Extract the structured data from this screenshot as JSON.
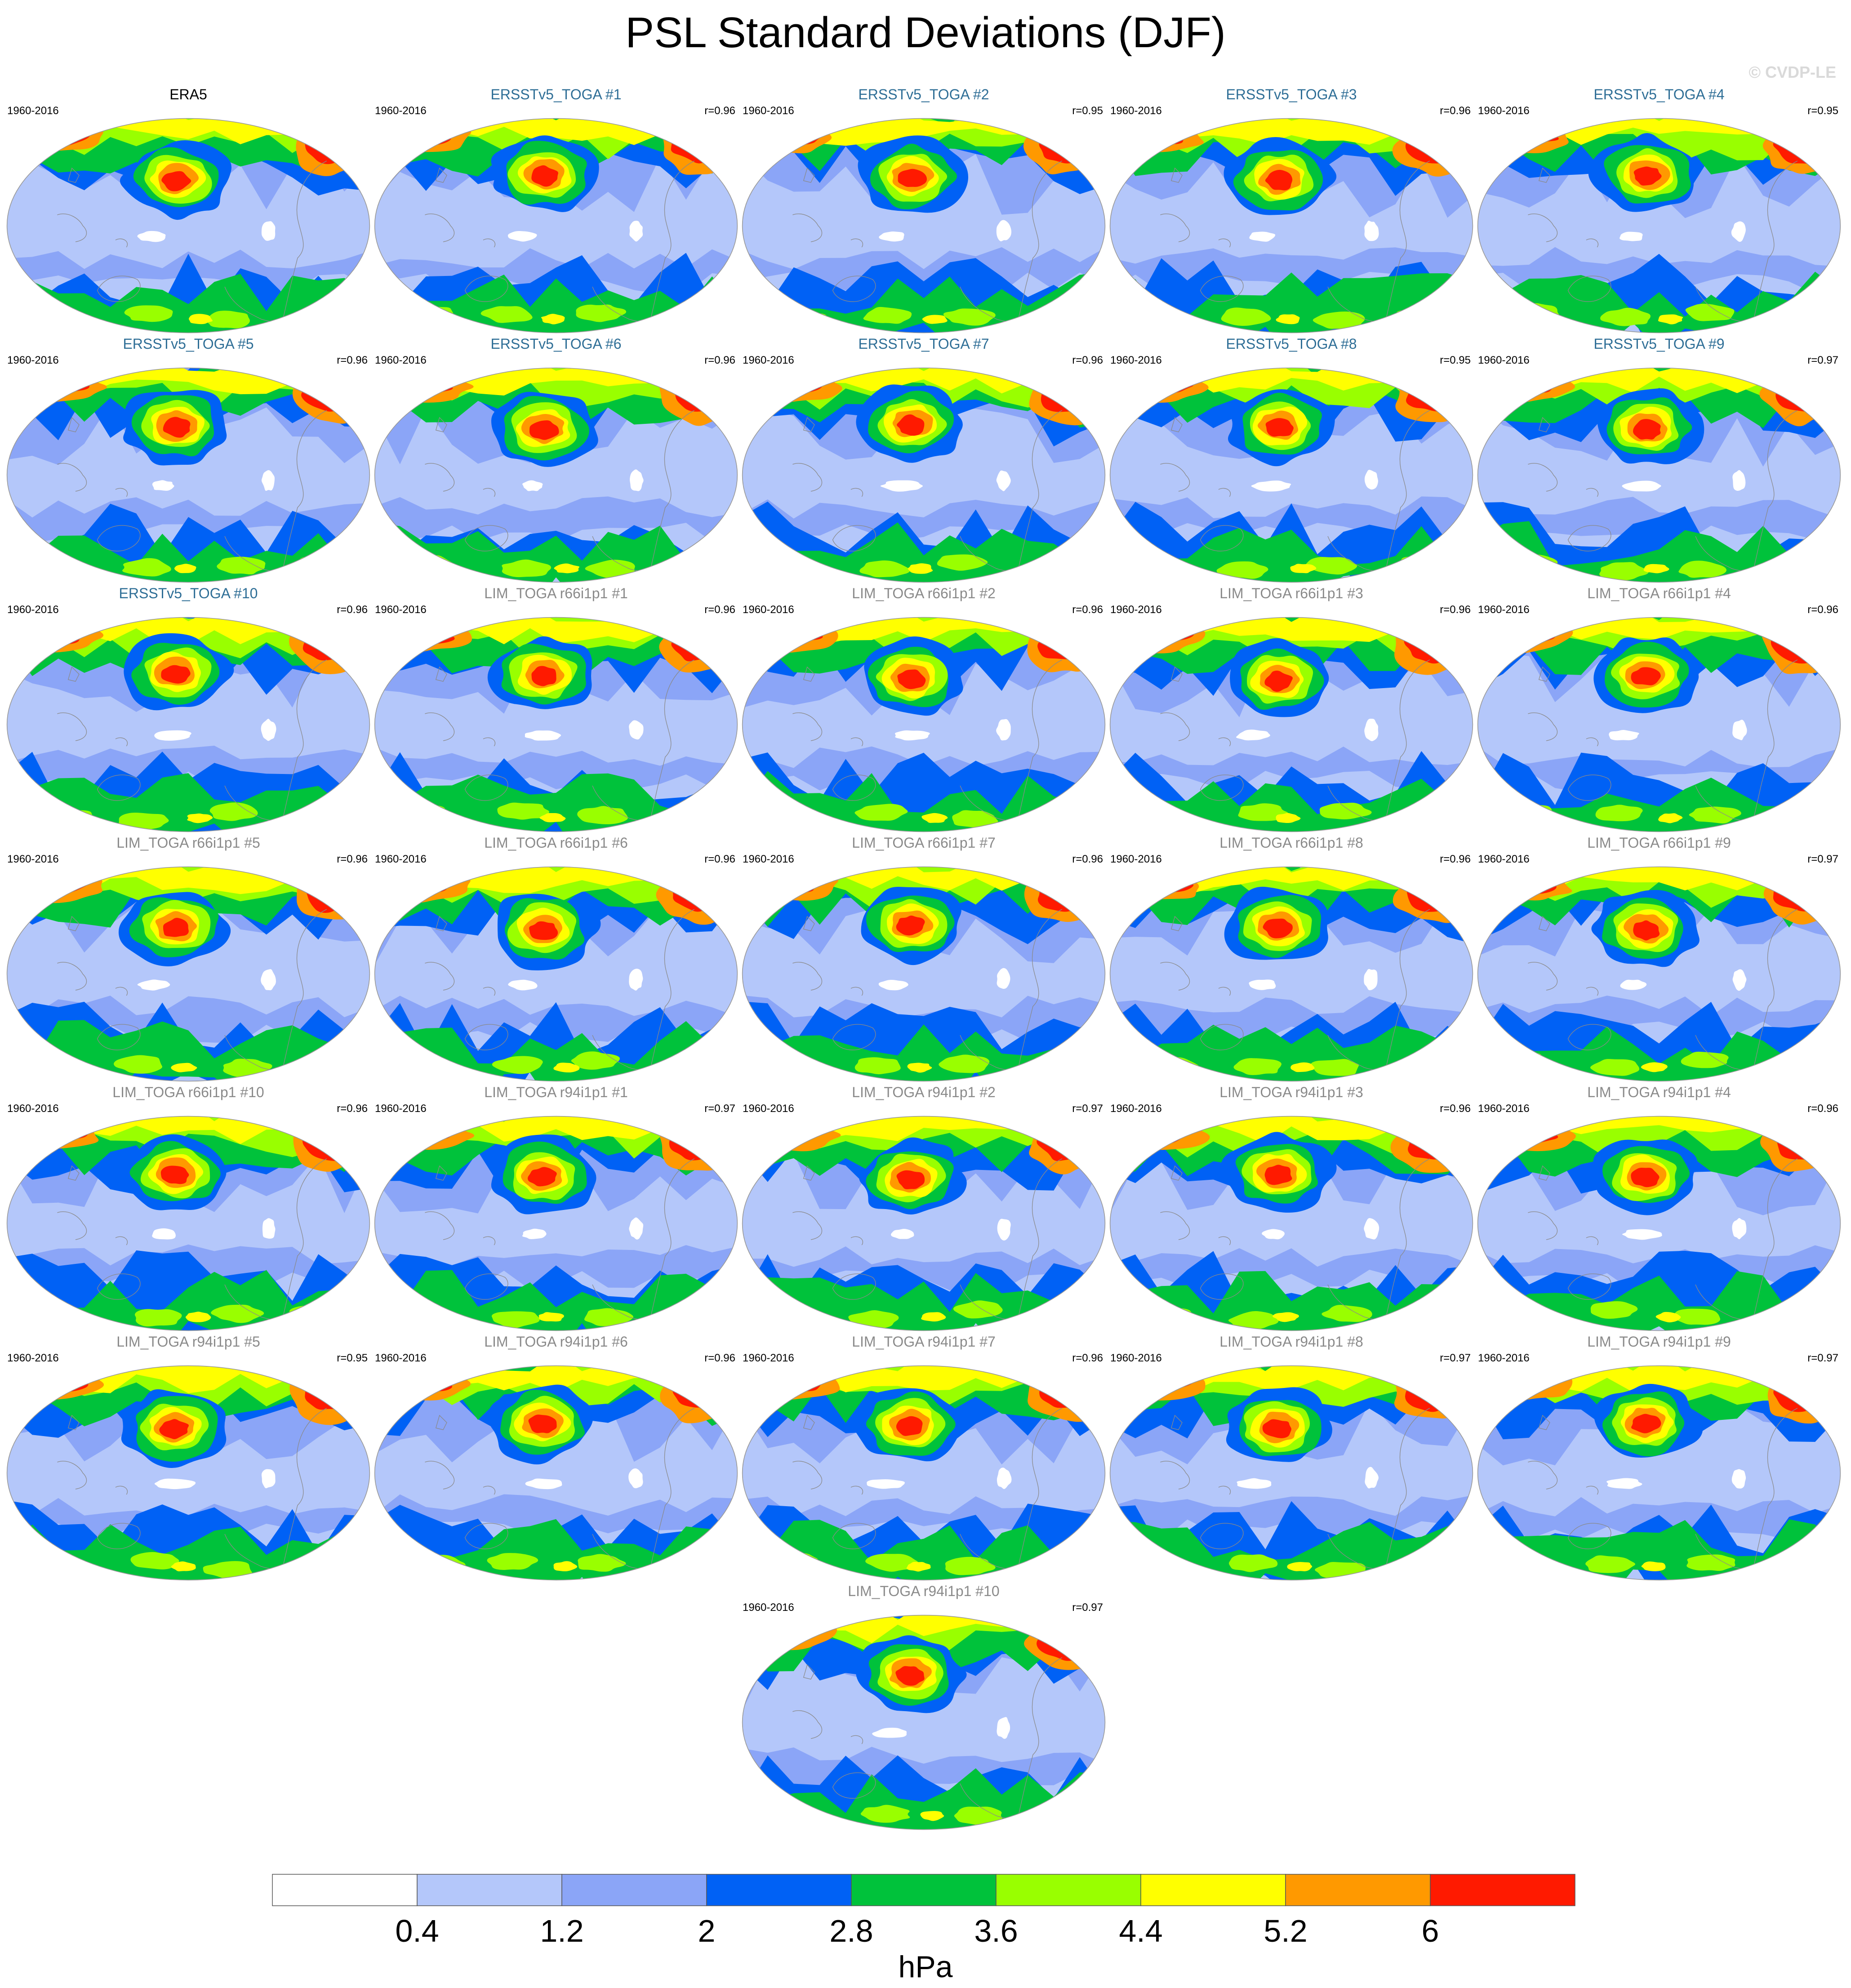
{
  "title": "PSL Standard Deviations (DJF)",
  "watermark": "© CVDP-LE",
  "colors": {
    "ersst_title": "#2e6e96",
    "lim_title": "#8a8a8a",
    "obs_title": "#000000",
    "levels": [
      "#ffffff",
      "#b4c7fa",
      "#8ba5f7",
      "#0061f5",
      "#00c23b",
      "#99ff00",
      "#ffff00",
      "#ff9900",
      "#ff1a00"
    ]
  },
  "panels": [
    {
      "title": "ERA5",
      "years": "1960-2016",
      "r": "",
      "group": "obs"
    },
    {
      "title": "ERSSTv5_TOGA #1",
      "years": "1960-2016",
      "r": "r=0.96",
      "group": "ersst"
    },
    {
      "title": "ERSSTv5_TOGA #2",
      "years": "1960-2016",
      "r": "r=0.95",
      "group": "ersst"
    },
    {
      "title": "ERSSTv5_TOGA #3",
      "years": "1960-2016",
      "r": "r=0.96",
      "group": "ersst"
    },
    {
      "title": "ERSSTv5_TOGA #4",
      "years": "1960-2016",
      "r": "r=0.95",
      "group": "ersst"
    },
    {
      "title": "ERSSTv5_TOGA #5",
      "years": "1960-2016",
      "r": "r=0.96",
      "group": "ersst"
    },
    {
      "title": "ERSSTv5_TOGA #6",
      "years": "1960-2016",
      "r": "r=0.96",
      "group": "ersst"
    },
    {
      "title": "ERSSTv5_TOGA #7",
      "years": "1960-2016",
      "r": "r=0.96",
      "group": "ersst"
    },
    {
      "title": "ERSSTv5_TOGA #8",
      "years": "1960-2016",
      "r": "r=0.95",
      "group": "ersst"
    },
    {
      "title": "ERSSTv5_TOGA #9",
      "years": "1960-2016",
      "r": "r=0.97",
      "group": "ersst"
    },
    {
      "title": "ERSSTv5_TOGA #10",
      "years": "1960-2016",
      "r": "r=0.96",
      "group": "ersst"
    },
    {
      "title": "LIM_TOGA r66i1p1 #1",
      "years": "1960-2016",
      "r": "r=0.96",
      "group": "lim"
    },
    {
      "title": "LIM_TOGA r66i1p1 #2",
      "years": "1960-2016",
      "r": "r=0.96",
      "group": "lim"
    },
    {
      "title": "LIM_TOGA r66i1p1 #3",
      "years": "1960-2016",
      "r": "r=0.96",
      "group": "lim"
    },
    {
      "title": "LIM_TOGA r66i1p1 #4",
      "years": "1960-2016",
      "r": "r=0.96",
      "group": "lim"
    },
    {
      "title": "LIM_TOGA r66i1p1 #5",
      "years": "1960-2016",
      "r": "r=0.96",
      "group": "lim"
    },
    {
      "title": "LIM_TOGA r66i1p1 #6",
      "years": "1960-2016",
      "r": "r=0.96",
      "group": "lim"
    },
    {
      "title": "LIM_TOGA r66i1p1 #7",
      "years": "1960-2016",
      "r": "r=0.96",
      "group": "lim"
    },
    {
      "title": "LIM_TOGA r66i1p1 #8",
      "years": "1960-2016",
      "r": "r=0.96",
      "group": "lim"
    },
    {
      "title": "LIM_TOGA r66i1p1 #9",
      "years": "1960-2016",
      "r": "r=0.97",
      "group": "lim"
    },
    {
      "title": "LIM_TOGA r66i1p1 #10",
      "years": "1960-2016",
      "r": "r=0.96",
      "group": "lim"
    },
    {
      "title": "LIM_TOGA r94i1p1 #1",
      "years": "1960-2016",
      "r": "r=0.97",
      "group": "lim"
    },
    {
      "title": "LIM_TOGA r94i1p1 #2",
      "years": "1960-2016",
      "r": "r=0.97",
      "group": "lim"
    },
    {
      "title": "LIM_TOGA r94i1p1 #3",
      "years": "1960-2016",
      "r": "r=0.96",
      "group": "lim"
    },
    {
      "title": "LIM_TOGA r94i1p1 #4",
      "years": "1960-2016",
      "r": "r=0.96",
      "group": "lim"
    },
    {
      "title": "LIM_TOGA r94i1p1 #5",
      "years": "1960-2016",
      "r": "r=0.95",
      "group": "lim"
    },
    {
      "title": "LIM_TOGA r94i1p1 #6",
      "years": "1960-2016",
      "r": "r=0.96",
      "group": "lim"
    },
    {
      "title": "LIM_TOGA r94i1p1 #7",
      "years": "1960-2016",
      "r": "r=0.96",
      "group": "lim"
    },
    {
      "title": "LIM_TOGA r94i1p1 #8",
      "years": "1960-2016",
      "r": "r=0.97",
      "group": "lim"
    },
    {
      "title": "LIM_TOGA r94i1p1 #9",
      "years": "1960-2016",
      "r": "r=0.97",
      "group": "lim"
    },
    {
      "title": "LIM_TOGA r94i1p1 #10",
      "years": "1960-2016",
      "r": "r=0.97",
      "group": "lim"
    }
  ],
  "chart_data": {
    "type": "heatmap",
    "title": "PSL Standard Deviations (DJF)",
    "projection": "global map, Pacific-centered",
    "season": "DJF",
    "levels": [
      0.4,
      1.2,
      2,
      2.8,
      3.6,
      4.4,
      5.2,
      6
    ],
    "colorbar_labels": [
      "0.4",
      "1.2",
      "2",
      "2.8",
      "3.6",
      "4.4",
      "5.2",
      "6"
    ],
    "units": "hPa",
    "pattern_correlations_with_ERA5": [
      0.96,
      0.95,
      0.96,
      0.95,
      0.96,
      0.96,
      0.96,
      0.95,
      0.97,
      0.96,
      0.96,
      0.96,
      0.96,
      0.96,
      0.96,
      0.96,
      0.96,
      0.96,
      0.97,
      0.96,
      0.97,
      0.97,
      0.96,
      0.96,
      0.95,
      0.96,
      0.96,
      0.97,
      0.97,
      0.97
    ]
  }
}
